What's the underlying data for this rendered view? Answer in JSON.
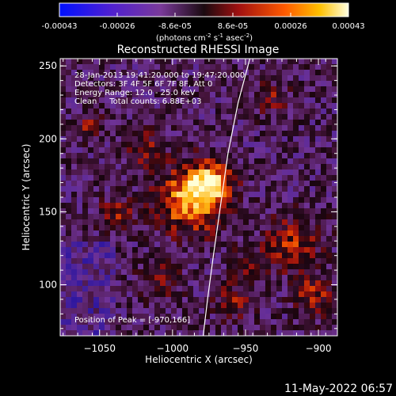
{
  "colorbar": {
    "tick_labels": [
      "-0.00043",
      "-0.00026",
      "-8.6e-05",
      "8.6e-05",
      "0.00026",
      "0.00043"
    ],
    "unit": "(photons cm",
    "unit_sup1": "-2",
    "unit_mid": " s",
    "unit_sup2": "-1",
    "unit_end": " asec",
    "unit_sup3": "-2",
    "unit_close": ")"
  },
  "chart_data": {
    "type": "heatmap",
    "title": "Reconstructed RHESSI Image",
    "xlabel": "Heliocentric X (arcsec)",
    "ylabel": "Heliocentric Y (arcsec)",
    "xlim": [
      -1077,
      -887
    ],
    "ylim": [
      65,
      255
    ],
    "xticks": [
      -1050,
      -1000,
      -950,
      -900
    ],
    "yticks": [
      100,
      150,
      200,
      250
    ],
    "xtick_labels": [
      "−1050",
      "−1000",
      "−950",
      "−900"
    ],
    "ytick_labels": [
      "100",
      "150",
      "200",
      "250"
    ],
    "peak": [
      -970,
      166
    ],
    "limb_curve": [
      [
        -947,
        255
      ],
      [
        -955,
        225
      ],
      [
        -962,
        190
      ],
      [
        -967,
        155
      ],
      [
        -972,
        120
      ],
      [
        -976,
        90
      ],
      [
        -979,
        65
      ]
    ],
    "annotations": [
      "28-Jan-2013 19:41:20.000 to 19:47:20.000",
      "Detectors: 3F 4F 5F 6F 7F 8F, Att 0",
      "Energy Range: 12.0 - 25.0 keV",
      "Clean     Total counts: 6.88E+03"
    ],
    "peak_label": "Position of Peak = [-970,166]"
  },
  "footer": {
    "date": "11-May-2022 06:57"
  },
  "colors": {
    "background": "#000000",
    "text": "#ffffff"
  }
}
